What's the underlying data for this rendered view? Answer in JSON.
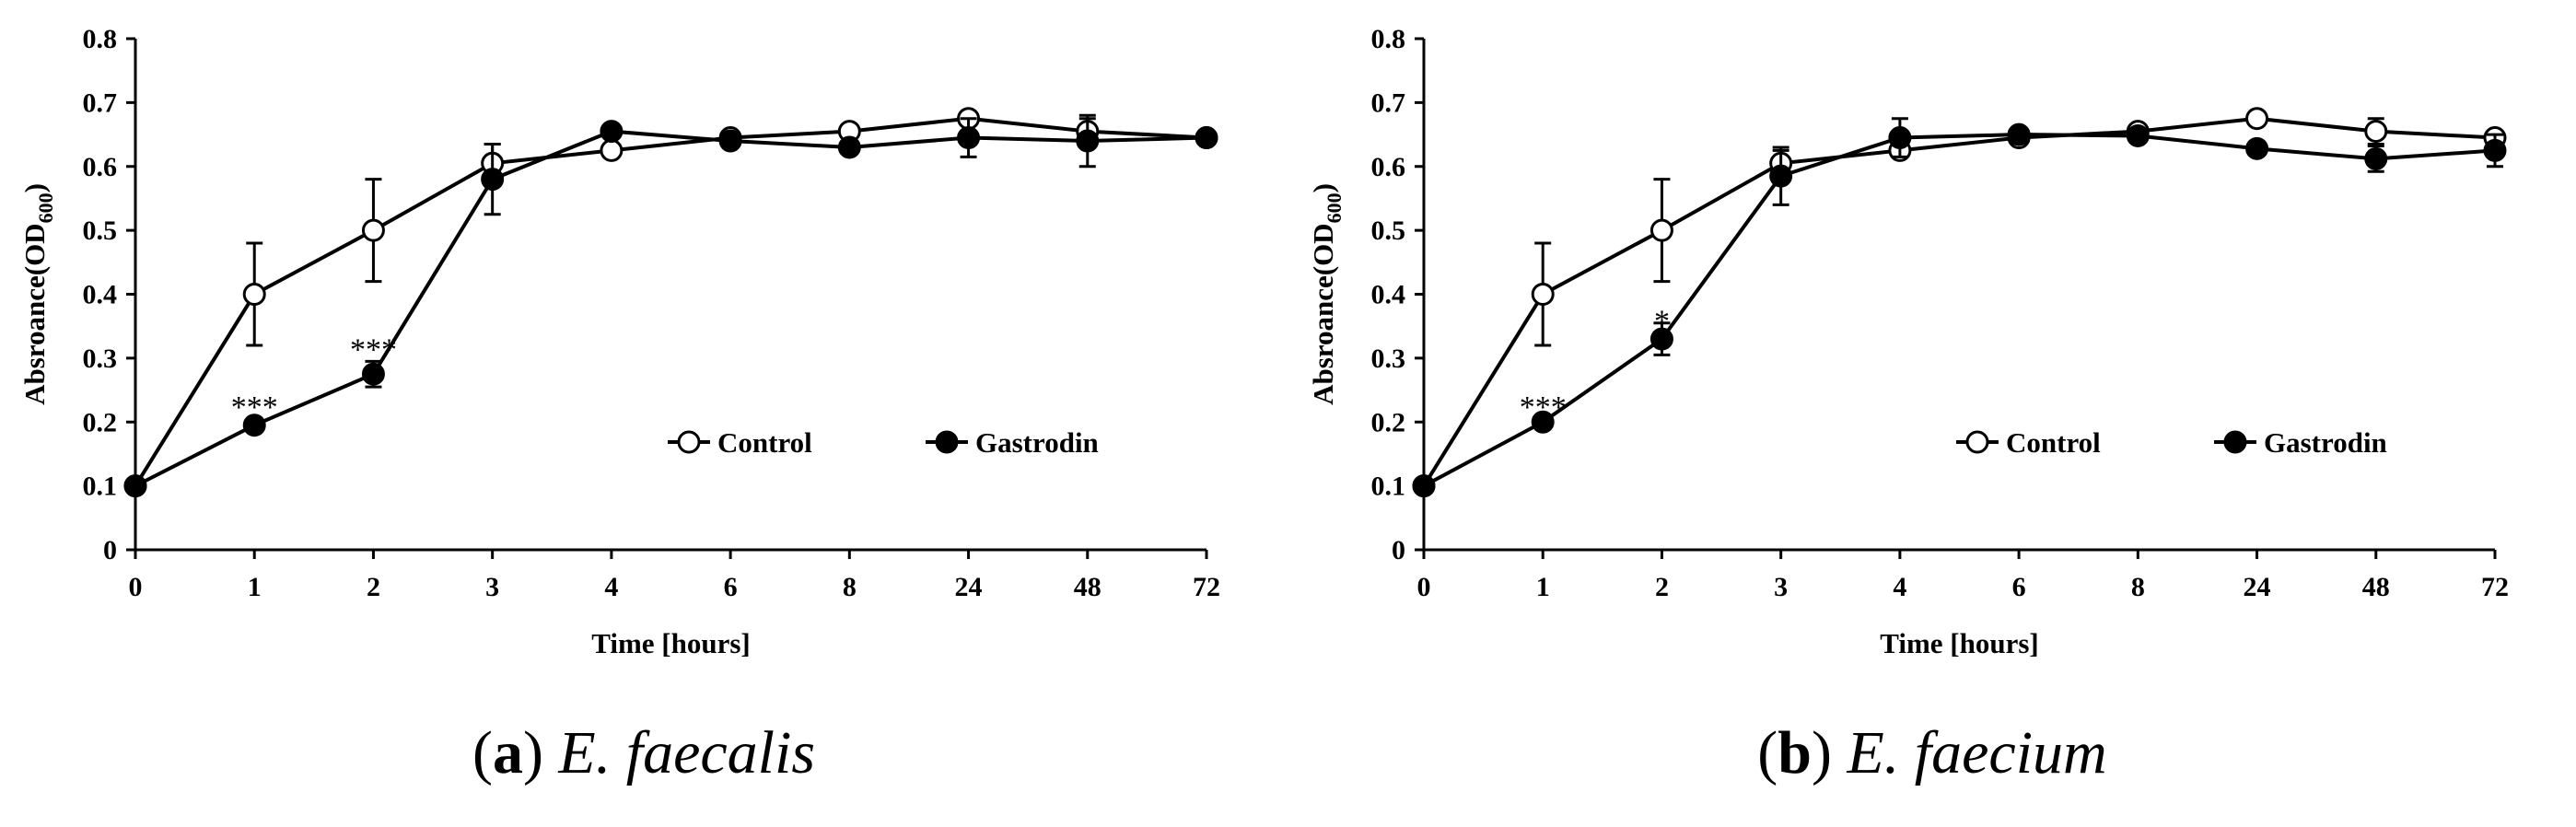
{
  "chart_data": [
    {
      "type": "line",
      "panel_letter": "a",
      "species": "E. faecalis",
      "xlabel": "Time [hours]",
      "ylabel_main": "Absroance(OD",
      "ylabel_sub": "600",
      "ylabel_close": ")",
      "categories": [
        "0",
        "1",
        "2",
        "3",
        "4",
        "6",
        "8",
        "24",
        "48",
        "72"
      ],
      "ylim": [
        0,
        0.8
      ],
      "yticks": [
        "0",
        "0.1",
        "0.2",
        "0.3",
        "0.4",
        "0.5",
        "0.6",
        "0.7",
        "0.8"
      ],
      "legend_position": "lower-right",
      "series": [
        {
          "name": "Control",
          "marker": "open-circle",
          "values": [
            0.1,
            0.4,
            0.5,
            0.605,
            0.625,
            0.645,
            0.655,
            0.675,
            0.655,
            0.645
          ],
          "errors": [
            0.0,
            0.08,
            0.08,
            0.03,
            0.0,
            0.0,
            0.0,
            0.0,
            0.02,
            0.0
          ]
        },
        {
          "name": "Gastrodin",
          "marker": "filled-circle",
          "values": [
            0.1,
            0.195,
            0.275,
            0.58,
            0.655,
            0.64,
            0.63,
            0.645,
            0.64,
            0.645
          ],
          "errors": [
            0.0,
            0.0,
            0.02,
            0.055,
            0.0,
            0.0,
            0.0,
            0.03,
            0.04,
            0.0
          ]
        }
      ],
      "annotations": [
        {
          "text": "***",
          "x_index": 1,
          "y": 0.225
        },
        {
          "text": "***",
          "x_index": 2,
          "y": 0.315
        }
      ]
    },
    {
      "type": "line",
      "panel_letter": "b",
      "species": "E. faecium",
      "xlabel": "Time [hours]",
      "ylabel_main": "Absroance(OD",
      "ylabel_sub": "600",
      "ylabel_close": ")",
      "categories": [
        "0",
        "1",
        "2",
        "3",
        "4",
        "6",
        "8",
        "24",
        "48",
        "72"
      ],
      "ylim": [
        0,
        0.8
      ],
      "yticks": [
        "0",
        "0.1",
        "0.2",
        "0.3",
        "0.4",
        "0.5",
        "0.6",
        "0.7",
        "0.8"
      ],
      "legend_position": "lower-right",
      "series": [
        {
          "name": "Control",
          "marker": "open-circle",
          "values": [
            0.1,
            0.4,
            0.5,
            0.605,
            0.625,
            0.645,
            0.655,
            0.675,
            0.655,
            0.645
          ],
          "errors": [
            0.0,
            0.08,
            0.08,
            0.02,
            0.0,
            0.0,
            0.0,
            0.0,
            0.02,
            0.0
          ]
        },
        {
          "name": "Gastrodin",
          "marker": "filled-circle",
          "values": [
            0.1,
            0.2,
            0.33,
            0.585,
            0.645,
            0.65,
            0.648,
            0.628,
            0.612,
            0.625
          ],
          "errors": [
            0.0,
            0.0,
            0.025,
            0.045,
            0.03,
            0.0,
            0.0,
            0.0,
            0.02,
            0.025
          ]
        }
      ],
      "annotations": [
        {
          "text": "***",
          "x_index": 1,
          "y": 0.225
        },
        {
          "text": "*",
          "x_index": 2,
          "y": 0.36
        }
      ]
    }
  ]
}
